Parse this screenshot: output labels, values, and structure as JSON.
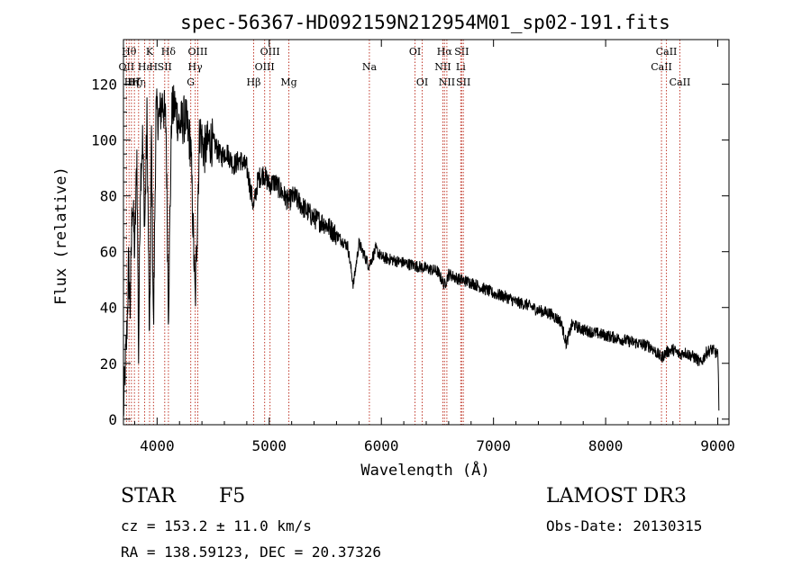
{
  "chart_data": {
    "type": "line",
    "title": "spec-56367-HD092159N212954M01_sp02-191.fits",
    "xlabel": "Wavelength (Å)",
    "ylabel": "Flux (relative)",
    "xlim": [
      3700,
      9100
    ],
    "ylim": [
      -2,
      136
    ],
    "xticks": [
      4000,
      5000,
      6000,
      7000,
      8000,
      9000
    ],
    "yticks": [
      0,
      20,
      40,
      60,
      80,
      100,
      120
    ],
    "grid": false,
    "series": [
      {
        "name": "flux",
        "x": [
          3700,
          3715,
          3730,
          3745,
          3760,
          3780,
          3800,
          3820,
          3835,
          3850,
          3870,
          3890,
          3910,
          3933,
          3950,
          3968,
          3990,
          4020,
          4050,
          4080,
          4101,
          4130,
          4160,
          4200,
          4250,
          4300,
          4340,
          4380,
          4420,
          4470,
          4520,
          4570,
          4620,
          4680,
          4740,
          4800,
          4861,
          4900,
          4950,
          5000,
          5050,
          5100,
          5170,
          5220,
          5300,
          5400,
          5500,
          5600,
          5700,
          5750,
          5800,
          5890,
          5950,
          6000,
          6100,
          6200,
          6300,
          6400,
          6500,
          6563,
          6600,
          6700,
          6800,
          6900,
          7000,
          7100,
          7200,
          7300,
          7400,
          7500,
          7600,
          7650,
          7700,
          7800,
          7900,
          8000,
          8100,
          8200,
          8300,
          8400,
          8498,
          8542,
          8600,
          8662,
          8700,
          8800,
          8850,
          8900,
          8950,
          9000,
          9010
        ],
        "y": [
          2,
          18,
          30,
          55,
          40,
          80,
          60,
          95,
          22,
          85,
          100,
          70,
          108,
          25,
          104,
          30,
          110,
          108,
          114,
          105,
          38,
          110,
          112,
          105,
          108,
          98,
          42,
          104,
          96,
          100,
          98,
          94,
          96,
          91,
          93,
          90,
          76,
          86,
          88,
          84,
          85,
          82,
          78,
          80,
          76,
          72,
          70,
          66,
          62,
          48,
          63,
          55,
          61,
          58,
          57,
          56,
          55,
          54,
          53,
          48,
          52,
          50,
          49,
          47,
          45,
          44,
          42,
          41,
          39,
          38,
          35,
          27,
          34,
          32,
          31,
          30,
          29,
          28,
          27,
          26,
          22,
          24,
          25,
          23,
          24,
          22,
          20,
          24,
          25,
          23,
          5
        ]
      }
    ],
    "lines": [
      {
        "wl": 3727,
        "label": "OII",
        "row": 1
      },
      {
        "wl": 3750,
        "label": "Hθ",
        "row": 0
      },
      {
        "wl": 3771,
        "label": "Hη",
        "row": 2
      },
      {
        "wl": 3798,
        "label": "Hζ",
        "row": 2
      },
      {
        "wl": 3835,
        "label": "Hη",
        "row": 2
      },
      {
        "wl": 3889,
        "label": "Hε",
        "row": 1
      },
      {
        "wl": 3933,
        "label": "K",
        "row": 0
      },
      {
        "wl": 3968,
        "label": "H",
        "row": 1
      },
      {
        "wl": 4068,
        "label": "SII",
        "row": 1
      },
      {
        "wl": 4101,
        "label": "Hδ",
        "row": 0
      },
      {
        "wl": 4300,
        "label": "G",
        "row": 2
      },
      {
        "wl": 4340,
        "label": "Hγ",
        "row": 1
      },
      {
        "wl": 4363,
        "label": "OIII",
        "row": 0
      },
      {
        "wl": 4861,
        "label": "Hβ",
        "row": 2
      },
      {
        "wl": 4959,
        "label": "OIII",
        "row": 1
      },
      {
        "wl": 5007,
        "label": "OIII",
        "row": 0
      },
      {
        "wl": 5175,
        "label": "Mg",
        "row": 2
      },
      {
        "wl": 5893,
        "label": "Na",
        "row": 1
      },
      {
        "wl": 6300,
        "label": "OI",
        "row": 0
      },
      {
        "wl": 6364,
        "label": "OI",
        "row": 2
      },
      {
        "wl": 6548,
        "label": "NII",
        "row": 1
      },
      {
        "wl": 6563,
        "label": "Hα",
        "row": 0
      },
      {
        "wl": 6584,
        "label": "NII",
        "row": 2
      },
      {
        "wl": 6708,
        "label": "Li",
        "row": 1
      },
      {
        "wl": 6716,
        "label": "SII",
        "row": 0
      },
      {
        "wl": 6731,
        "label": "SII",
        "row": 2
      },
      {
        "wl": 8498,
        "label": "CaII",
        "row": 1
      },
      {
        "wl": 8542,
        "label": "CaII",
        "row": 0
      },
      {
        "wl": 8662,
        "label": "CaII",
        "row": 2
      }
    ]
  },
  "info": {
    "class": "STAR",
    "subclass": "F5",
    "survey": "LAMOST DR3",
    "redshift": "cz = 153.2 ± 11.0 km/s",
    "obs_date": "Obs-Date: 20130315",
    "coords": "RA = 138.59123, DEC =  20.37326"
  }
}
